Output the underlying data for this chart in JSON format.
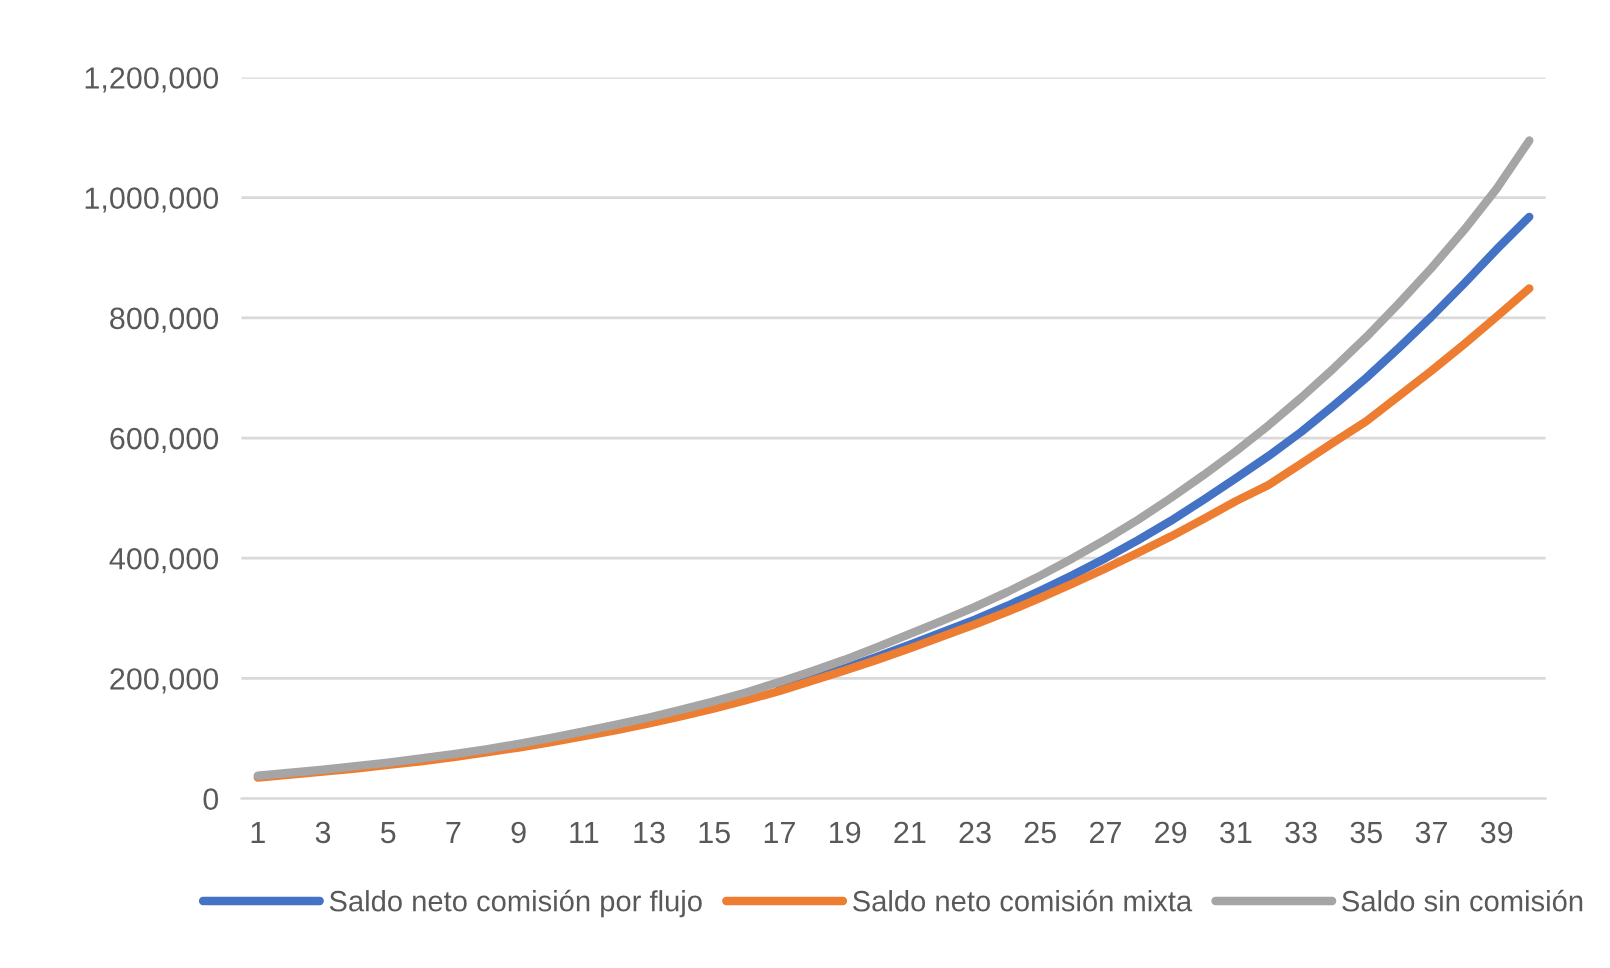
{
  "chart_data": {
    "type": "line",
    "categories": [
      "1",
      null,
      "3",
      null,
      "5",
      null,
      "7",
      null,
      "9",
      null,
      "11",
      null,
      "13",
      null,
      "15",
      null,
      "17",
      null,
      "19",
      null,
      "21",
      null,
      "23",
      null,
      "25",
      null,
      "27",
      null,
      "29",
      null,
      "31",
      null,
      "33",
      null,
      "35",
      null,
      "37",
      null,
      "39",
      null
    ],
    "series": [
      {
        "name": "Saldo neto comisión por flujo",
        "color": "#4472c4",
        "values": [
          null,
          null,
          null,
          null,
          null,
          null,
          null,
          null,
          null,
          null,
          null,
          null,
          null,
          null,
          null,
          null,
          182000,
          199000,
          217000,
          236000,
          256000,
          277000,
          298000,
          321000,
          346000,
          372000,
          400000,
          430000,
          462000,
          497000,
          533000,
          570000,
          610000,
          654000,
          700000,
          750000,
          802000,
          857000,
          914000,
          968000
        ]
      },
      {
        "name": "Saldo neto comisión mixta",
        "color": "#ed7d31",
        "values": [
          35000,
          40000,
          45000,
          50000,
          56000,
          62000,
          69000,
          77000,
          85000,
          94000,
          104000,
          114000,
          125000,
          137000,
          150000,
          164000,
          179000,
          196000,
          213000,
          231000,
          250000,
          270000,
          290000,
          311000,
          334000,
          358000,
          383000,
          409000,
          436000,
          465000,
          495000,
          522000,
          557000,
          593000,
          628000,
          670000,
          712000,
          756000,
          802000,
          849000
        ]
      },
      {
        "name": "Saldo sin comisión",
        "color": "#a5a5a5",
        "values": [
          38000,
          43000,
          48000,
          54000,
          60000,
          67000,
          74000,
          82000,
          91000,
          101000,
          112000,
          123000,
          135000,
          148000,
          162000,
          177000,
          194000,
          212000,
          231000,
          252000,
          274000,
          296000,
          319000,
          344000,
          371000,
          400000,
          431000,
          464000,
          500000,
          538000,
          578000,
          621000,
          667000,
          716000,
          768000,
          824000,
          883000,
          946000,
          1015000,
          1095000
        ]
      }
    ],
    "ylim": [
      0,
      1200000
    ],
    "yticks": [
      {
        "value": 0,
        "label": "0"
      },
      {
        "value": 200000,
        "label": "200,000"
      },
      {
        "value": 400000,
        "label": "400,000"
      },
      {
        "value": 600000,
        "label": "600,000"
      },
      {
        "value": 800000,
        "label": "800,000"
      },
      {
        "value": 1000000,
        "label": "1,000,000"
      },
      {
        "value": 1200000,
        "label": "1,200,000"
      }
    ],
    "grid": "y",
    "legend": "bottom",
    "marker": "none",
    "line_style": "solid"
  }
}
